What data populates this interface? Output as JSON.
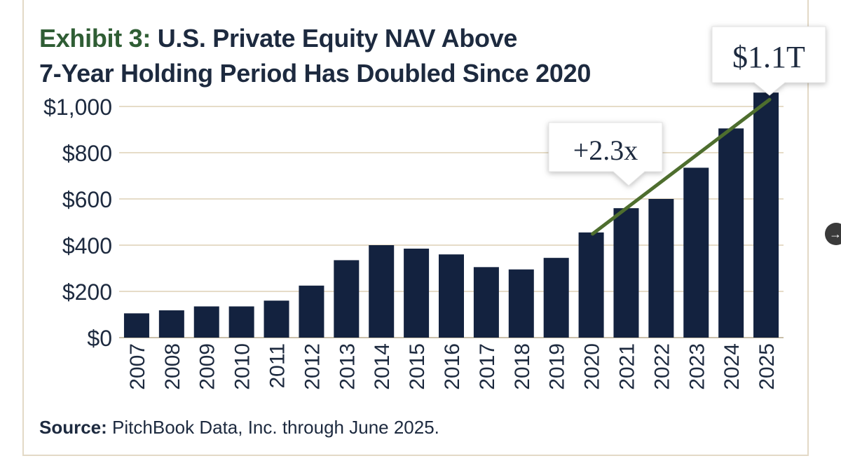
{
  "title": {
    "prefix": "Exhibit 3:",
    "line1": "U.S. Private Equity NAV Above",
    "line2": "7-Year Holding Period Has Doubled Since 2020"
  },
  "source": {
    "label": "Source:",
    "text": "PitchBook Data, Inc. through June 2025."
  },
  "annotations": {
    "growth": "+2.3x",
    "latest": "$1.1T"
  },
  "colors": {
    "bar": "#13223f",
    "trend": "#4e6e2e",
    "grid": "#e6dcc8",
    "text": "#1d2a3f",
    "title_prefix": "#2f5d34"
  },
  "nav": {
    "icon": "arrow-right-icon"
  },
  "chart_data": {
    "type": "bar",
    "categories": [
      "2007",
      "2008",
      "2009",
      "2010",
      "2011",
      "2012",
      "2013",
      "2014",
      "2015",
      "2016",
      "2017",
      "2018",
      "2019",
      "2020",
      "2021",
      "2022",
      "2023",
      "2024",
      "2025"
    ],
    "values": [
      105,
      118,
      135,
      135,
      160,
      225,
      335,
      400,
      385,
      360,
      305,
      295,
      345,
      455,
      560,
      600,
      735,
      905,
      1060
    ],
    "ylim": [
      0,
      1000
    ],
    "yticks": [
      0,
      200,
      400,
      600,
      800,
      1000
    ],
    "ytick_labels": [
      "$0",
      "$200",
      "$400",
      "$600",
      "$800",
      "$1,000"
    ],
    "trend_line": {
      "from": "2020",
      "to": "2025"
    },
    "grid": true,
    "legend": "none"
  }
}
